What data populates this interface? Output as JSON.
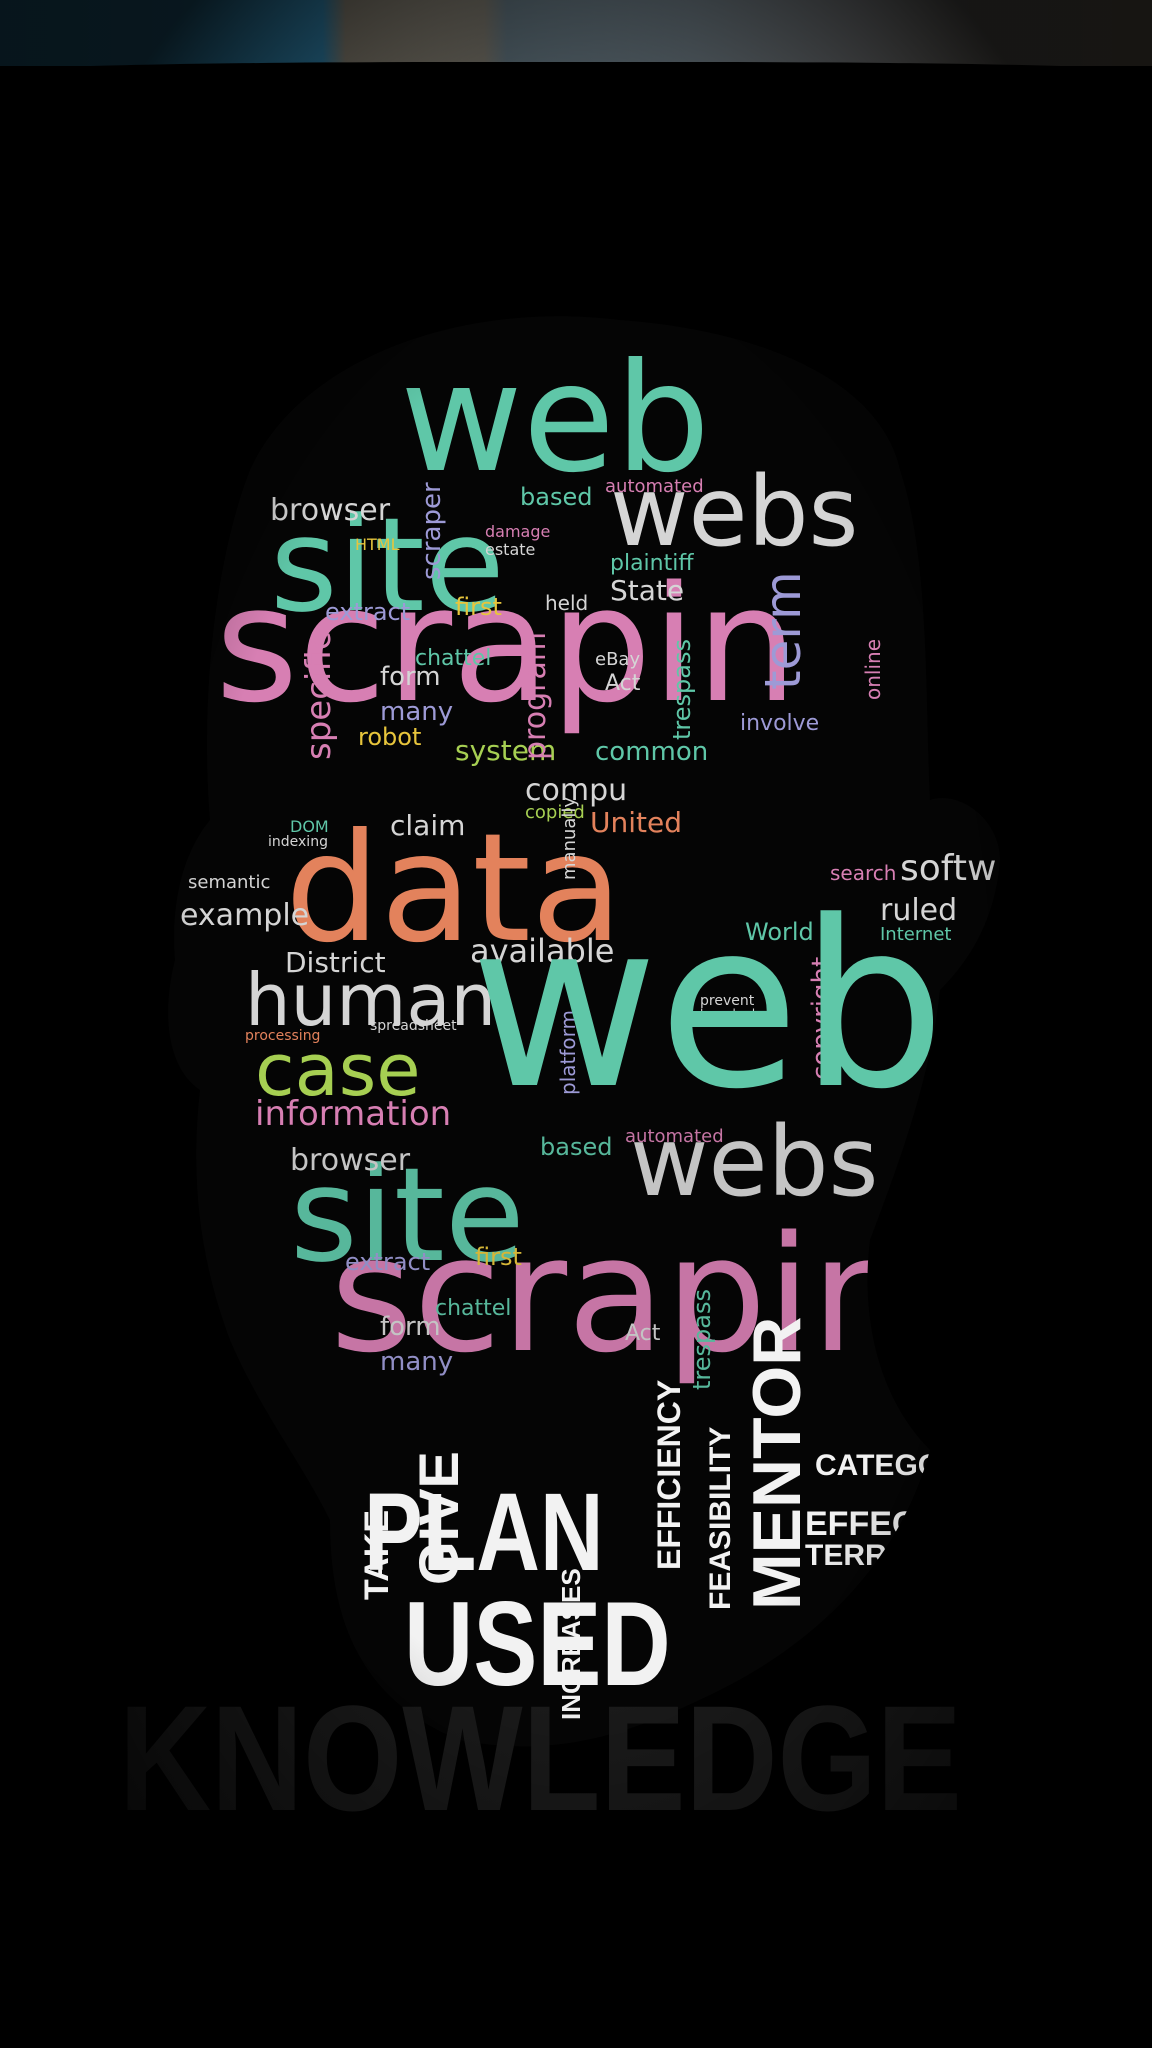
{
  "artwork": {
    "kind": "word-cloud-portrait",
    "palette": {
      "background": "#000000",
      "teal": "#5fc7a8",
      "pink": "#d77fb3",
      "orange": "#e3825c",
      "green": "#a6cf52",
      "yellow": "#e7c53c",
      "lavender": "#9d9ad6",
      "gray": "#d5d5d5",
      "white": "#f2f2f2"
    },
    "words": [
      {
        "text": "web",
        "color": "teal"
      },
      {
        "text": "site",
        "color": "teal"
      },
      {
        "text": "webs",
        "color": "gray"
      },
      {
        "text": "scrapin",
        "color": "pink"
      },
      {
        "text": "data",
        "color": "orange"
      },
      {
        "text": "human",
        "color": "gray"
      },
      {
        "text": "case",
        "color": "green"
      },
      {
        "text": "information",
        "color": "pink"
      },
      {
        "text": "browser",
        "color": "gray"
      },
      {
        "text": "extract",
        "color": "lavender"
      },
      {
        "text": "first",
        "color": "yellow"
      },
      {
        "text": "held",
        "color": "gray"
      },
      {
        "text": "State",
        "color": "gray"
      },
      {
        "text": "plaintiff",
        "color": "teal"
      },
      {
        "text": "based",
        "color": "teal"
      },
      {
        "text": "automated",
        "color": "pink"
      },
      {
        "text": "form",
        "color": "gray"
      },
      {
        "text": "many",
        "color": "lavender"
      },
      {
        "text": "robot",
        "color": "yellow"
      },
      {
        "text": "system",
        "color": "green"
      },
      {
        "text": "program",
        "color": "pink"
      },
      {
        "text": "trespass",
        "color": "teal"
      },
      {
        "text": "term",
        "color": "lavender"
      },
      {
        "text": "involve",
        "color": "lavender"
      },
      {
        "text": "chattel",
        "color": "teal"
      },
      {
        "text": "Act",
        "color": "gray"
      },
      {
        "text": "eBay",
        "color": "gray"
      },
      {
        "text": "specific",
        "color": "pink"
      },
      {
        "text": "example",
        "color": "gray"
      },
      {
        "text": "District",
        "color": "gray"
      },
      {
        "text": "available",
        "color": "gray"
      },
      {
        "text": "claim",
        "color": "gray"
      },
      {
        "text": "United",
        "color": "orange"
      },
      {
        "text": "copied",
        "color": "green"
      },
      {
        "text": "compu",
        "color": "gray"
      },
      {
        "text": "common",
        "color": "teal"
      },
      {
        "text": "copyright",
        "color": "pink"
      },
      {
        "text": "World",
        "color": "teal"
      },
      {
        "text": "search",
        "color": "pink"
      },
      {
        "text": "softw",
        "color": "gray"
      },
      {
        "text": "ruled",
        "color": "gray"
      },
      {
        "text": "Internet",
        "color": "teal"
      },
      {
        "text": "online",
        "color": "pink"
      },
      {
        "text": "scraper",
        "color": "lavender"
      },
      {
        "text": "damage",
        "color": "pink"
      },
      {
        "text": "estate",
        "color": "gray"
      },
      {
        "text": "HTML",
        "color": "yellow"
      },
      {
        "text": "spreadsheet",
        "color": "gray"
      },
      {
        "text": "processing",
        "color": "orange"
      },
      {
        "text": "semantic",
        "color": "gray"
      },
      {
        "text": "DOM",
        "color": "teal"
      },
      {
        "text": "indexing",
        "color": "gray"
      },
      {
        "text": "prevent",
        "color": "gray"
      },
      {
        "text": "launched",
        "color": "gray"
      },
      {
        "text": "platform",
        "color": "lavender"
      },
      {
        "text": "manually",
        "color": "gray"
      },
      {
        "text": "PLAN",
        "color": "white"
      },
      {
        "text": "USED",
        "color": "white"
      },
      {
        "text": "GIVE",
        "color": "white"
      },
      {
        "text": "TAKE",
        "color": "white"
      },
      {
        "text": "INCREASES",
        "color": "white"
      },
      {
        "text": "EFFICIENCY",
        "color": "white"
      },
      {
        "text": "FEASIBILITY",
        "color": "white"
      },
      {
        "text": "MENTOR",
        "color": "white"
      },
      {
        "text": "EFFECTIVE",
        "color": "white"
      },
      {
        "text": "TERRITORY",
        "color": "white"
      },
      {
        "text": "CATEGORY",
        "color": "white"
      },
      {
        "text": "KNOWLEDGE",
        "color": "white"
      }
    ]
  }
}
